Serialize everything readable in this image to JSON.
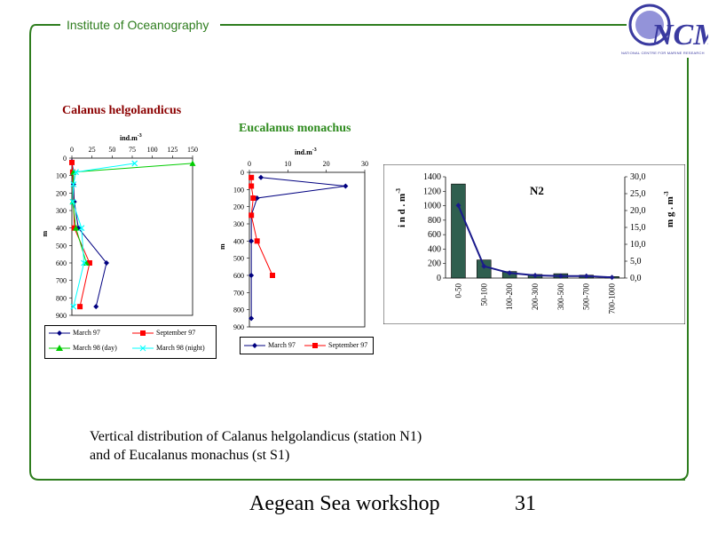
{
  "header": {
    "institute": "Institute of Oceanography",
    "logo_text": "NCMR",
    "logo_subtext": "NATIONAL CENTRE FOR MARINE RESEARCH"
  },
  "caption": {
    "line1": "Vertical distribution of Calanus helgolandicus (station N1)",
    "line2": "and of Eucalanus monachus (st S1)"
  },
  "footer": {
    "title": "Aegean Sea workshop",
    "page": "31"
  },
  "colors": {
    "frame": "#2e7d1e",
    "title_red": "#8b0000",
    "title_green": "#2e8b1e",
    "navy": "#000080",
    "red": "#ff0000",
    "green": "#00cc00",
    "cyan": "#00ffff",
    "bar": "#2f5f4f"
  },
  "chart_data": [
    {
      "type": "line",
      "title": "Calanus helgolandicus",
      "xlabel": "ind.m-3",
      "ylabel": "m",
      "xlim": [
        0,
        150
      ],
      "ylim": [
        900,
        0
      ],
      "xticks": [
        "0",
        "25",
        "50",
        "75",
        "100",
        "125",
        "150"
      ],
      "yticks": [
        "0",
        "100",
        "200",
        "300",
        "400",
        "500",
        "600",
        "700",
        "800",
        "900"
      ],
      "series": [
        {
          "name": "March 97",
          "color": "#000080",
          "marker": "diamond",
          "points": [
            [
              0,
              20
            ],
            [
              2,
              80
            ],
            [
              2,
              150
            ],
            [
              3,
              250
            ],
            [
              8,
              400
            ],
            [
              43,
              600
            ],
            [
              30,
              850
            ]
          ]
        },
        {
          "name": "September 97",
          "color": "#ff0000",
          "marker": "square",
          "points": [
            [
              0,
              25
            ],
            [
              1,
              80
            ],
            [
              3,
              400
            ],
            [
              22,
              600
            ],
            [
              10,
              850
            ]
          ]
        },
        {
          "name": "March 98 (day)",
          "color": "#00cc00",
          "marker": "triangle",
          "points": [
            [
              150,
              30
            ],
            [
              2,
              80
            ],
            [
              1,
              250
            ],
            [
              5,
              400
            ],
            [
              18,
              600
            ]
          ]
        },
        {
          "name": "March 98 (night)",
          "color": "#00ffff",
          "marker": "x",
          "points": [
            [
              78,
              30
            ],
            [
              5,
              80
            ],
            [
              2,
              150
            ],
            [
              1,
              250
            ],
            [
              12,
              400
            ],
            [
              15,
              600
            ],
            [
              2,
              850
            ]
          ]
        }
      ]
    },
    {
      "type": "line",
      "title": "Eucalanus monachus",
      "xlabel": "ind.m-3",
      "ylabel": "m",
      "xlim": [
        0,
        30
      ],
      "ylim": [
        900,
        0
      ],
      "xticks": [
        "0",
        "10",
        "20",
        "30"
      ],
      "yticks": [
        "0",
        "100",
        "200",
        "300",
        "400",
        "500",
        "600",
        "700",
        "800",
        "900"
      ],
      "series": [
        {
          "name": "March 97",
          "color": "#000080",
          "marker": "diamond",
          "points": [
            [
              3,
              30
            ],
            [
              25,
              80
            ],
            [
              2,
              150
            ],
            [
              0.5,
              250
            ],
            [
              0.5,
              400
            ],
            [
              0.5,
              600
            ],
            [
              0.5,
              850
            ]
          ]
        },
        {
          "name": "September 97",
          "color": "#ff0000",
          "marker": "square",
          "points": [
            [
              0.5,
              30
            ],
            [
              0.5,
              80
            ],
            [
              1,
              150
            ],
            [
              0.5,
              250
            ],
            [
              2,
              400
            ],
            [
              6,
              600
            ]
          ]
        }
      ]
    },
    {
      "type": "bar",
      "title": "N2",
      "categories": [
        "0-50",
        "50-100",
        "100-200",
        "200-300",
        "300-500",
        "500-700",
        "700-1000"
      ],
      "ylabel_left": "i n d . m-3",
      "ylabel_right": "m g . m-3",
      "ylim_left": [
        0,
        1400
      ],
      "ylim_right": [
        0,
        30
      ],
      "yticks_left": [
        "0",
        "200",
        "400",
        "600",
        "800",
        "1000",
        "1200",
        "1400"
      ],
      "yticks_right": [
        "0,0",
        "5,0",
        "10,0",
        "15,0",
        "20,0",
        "25,0",
        "30,0"
      ],
      "series": [
        {
          "name": "ind.m-3",
          "type": "bar",
          "values": [
            1300,
            250,
            90,
            50,
            60,
            40,
            20
          ]
        },
        {
          "name": "mg.m-3",
          "type": "line",
          "values": [
            21.5,
            3.5,
            1.5,
            0.8,
            0.6,
            0.6,
            0.2
          ]
        }
      ]
    }
  ]
}
